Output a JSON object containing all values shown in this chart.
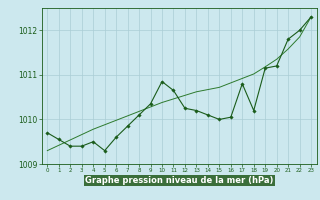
{
  "title": "Graphe pression niveau de la mer (hPa)",
  "bg_color": "#cce8ee",
  "grid_color": "#aacdd5",
  "line_color": "#1a5c1a",
  "line_color2": "#2d7a2d",
  "x_values": [
    0,
    1,
    2,
    3,
    4,
    5,
    6,
    7,
    8,
    9,
    10,
    11,
    12,
    13,
    14,
    15,
    16,
    17,
    18,
    19,
    20,
    21,
    22,
    23
  ],
  "y_main": [
    1009.7,
    1009.55,
    1009.4,
    1009.4,
    1009.5,
    1009.3,
    1009.6,
    1009.85,
    1010.1,
    1010.35,
    1010.85,
    1010.65,
    1010.25,
    1010.2,
    1010.1,
    1010.0,
    1010.05,
    1010.8,
    1010.2,
    1011.15,
    1011.2,
    1011.8,
    1012.0,
    1012.3
  ],
  "y_trend": [
    1009.3,
    1009.42,
    1009.54,
    1009.66,
    1009.78,
    1009.88,
    1009.98,
    1010.08,
    1010.18,
    1010.28,
    1010.38,
    1010.46,
    1010.54,
    1010.62,
    1010.67,
    1010.72,
    1010.82,
    1010.92,
    1011.02,
    1011.18,
    1011.35,
    1011.58,
    1011.85,
    1012.3
  ],
  "ylim": [
    1009.0,
    1012.5
  ],
  "yticks": [
    1009,
    1010,
    1011,
    1012
  ],
  "xlim": [
    -0.5,
    23.5
  ],
  "xlabel_color": "#1a5c1a",
  "xlabel_bg": "#4a8c4a"
}
